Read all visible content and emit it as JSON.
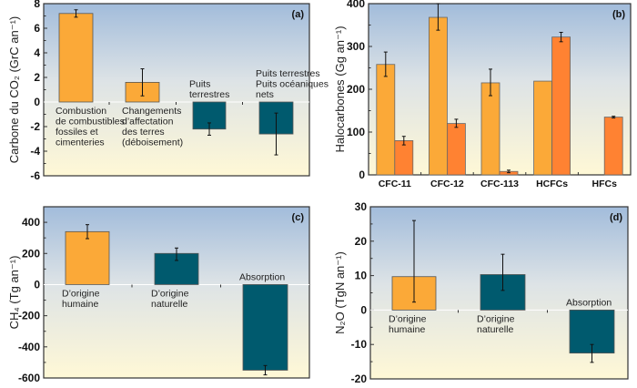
{
  "colors": {
    "anthropogenic": "#FBA938",
    "natural": "#005A6E",
    "halocarbon_second": "#FF8232",
    "bg_top": "#A2BCDB",
    "bg_bottom": "#FFF8D6"
  },
  "chart_data": [
    {
      "type": "bar",
      "panel_label": "(a)",
      "ylabel": "Carbone du CO₂ (GrC an⁻¹)",
      "ylim": [
        -6,
        8
      ],
      "yticks": [
        -6,
        -4,
        -2,
        0,
        2,
        4,
        6,
        8
      ],
      "categories": [
        [
          "Combustion",
          "de combustibles",
          "fossiles et",
          "cimenteries"
        ],
        [
          "Changements",
          "d’affectation",
          "des terres",
          "(déboisement)"
        ],
        [
          "Puits",
          "terrestres"
        ],
        [
          "Puits terrestres",
          "Puits océaniques",
          "nets"
        ]
      ],
      "values": [
        7.2,
        1.6,
        -2.2,
        -2.6
      ],
      "error_low": [
        6.9,
        0.5,
        -2.7,
        -4.3
      ],
      "error_high": [
        7.5,
        2.7,
        -1.7,
        -0.9
      ],
      "bar_colors": [
        "anthropogenic",
        "anthropogenic",
        "natural",
        "natural"
      ]
    },
    {
      "type": "bar",
      "panel_label": "(b)",
      "ylabel": "Halocarbones (Gg an⁻¹)",
      "ylim": [
        0,
        400
      ],
      "yticks": [
        0,
        100,
        200,
        300,
        400
      ],
      "categories": [
        "CFC-11",
        "CFC-12",
        "CFC-113",
        "HCFCs",
        "HFCs"
      ],
      "series": [
        {
          "values": [
            258,
            368,
            215,
            219,
            null
          ],
          "error_low": [
            230,
            338,
            185,
            null,
            null
          ],
          "error_high": [
            287,
            400,
            247,
            null,
            null
          ],
          "color": "anthropogenic"
        },
        {
          "values": [
            80,
            120,
            8,
            322,
            135
          ],
          "error_low": [
            70,
            111,
            5,
            311,
            133
          ],
          "error_high": [
            90,
            130,
            11,
            333,
            137
          ],
          "color": "halocarbon_second"
        }
      ]
    },
    {
      "type": "bar",
      "panel_label": "(c)",
      "ylabel": "CH₄ (Tg an⁻¹)",
      "ylim": [
        -600,
        500
      ],
      "yticks": [
        -600,
        -400,
        -200,
        0,
        200,
        400
      ],
      "categories": [
        [
          "D’origine",
          "humaine"
        ],
        [
          "D’origine",
          "naturelle"
        ],
        [
          "Absorption"
        ]
      ],
      "values": [
        340,
        200,
        -550
      ],
      "error_low": [
        295,
        155,
        -580
      ],
      "error_high": [
        385,
        235,
        -520
      ],
      "bar_colors": [
        "anthropogenic",
        "natural",
        "natural"
      ]
    },
    {
      "type": "bar",
      "panel_label": "(d)",
      "ylabel": "N₂O (TgN an⁻¹)",
      "ylim": [
        -20,
        30
      ],
      "yticks": [
        -20,
        -10,
        0,
        10,
        20,
        30
      ],
      "categories": [
        [
          "D’origine",
          "humaine"
        ],
        [
          "D’origine",
          "naturelle"
        ],
        [
          "Absorption"
        ]
      ],
      "values": [
        9.7,
        10.3,
        -12.5
      ],
      "error_low": [
        2.3,
        5.7,
        -15.2
      ],
      "error_high": [
        26,
        16.2,
        -10
      ],
      "bar_colors": [
        "anthropogenic",
        "natural",
        "natural"
      ]
    }
  ]
}
